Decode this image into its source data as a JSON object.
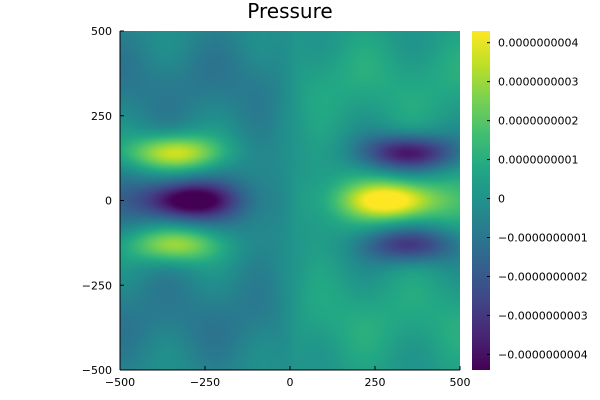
{
  "chart_data": {
    "type": "heatmap",
    "title": "Pressure",
    "xlabel": "",
    "ylabel": "",
    "xlim": [
      -500,
      500
    ],
    "ylim": [
      -500,
      500
    ],
    "x_ticks": [
      {
        "value": -500,
        "label": "−500"
      },
      {
        "value": -250,
        "label": "−250"
      },
      {
        "value": 0,
        "label": "0"
      },
      {
        "value": 250,
        "label": "250"
      },
      {
        "value": 500,
        "label": "500"
      }
    ],
    "y_ticks": [
      {
        "value": -500,
        "label": "−500"
      },
      {
        "value": -250,
        "label": "−250"
      },
      {
        "value": 0,
        "label": "0"
      },
      {
        "value": 250,
        "label": "250"
      },
      {
        "value": 500,
        "label": "500"
      }
    ],
    "colorbar": {
      "colormap": "viridis",
      "range": [
        -4.4e-10,
        4.3e-10
      ],
      "ticks": [
        {
          "value": 4e-10,
          "label": "0.0000000004"
        },
        {
          "value": 3e-10,
          "label": "0.0000000003"
        },
        {
          "value": 2e-10,
          "label": "0.0000000002"
        },
        {
          "value": 1e-10,
          "label": "0.0000000001"
        },
        {
          "value": 0,
          "label": "0"
        },
        {
          "value": -1e-10,
          "label": "−0.0000000001"
        },
        {
          "value": -2e-10,
          "label": "−0.0000000002"
        },
        {
          "value": -3e-10,
          "label": "−0.0000000003"
        },
        {
          "value": -4e-10,
          "label": "−0.0000000004"
        }
      ]
    },
    "features": [
      {
        "x": -340,
        "y": 140,
        "value": 4.2e-10
      },
      {
        "x": -300,
        "y": 0,
        "value": -4.4e-10
      },
      {
        "x": -340,
        "y": -130,
        "value": 3.5e-10
      },
      {
        "x": 350,
        "y": 140,
        "value": -4.4e-10
      },
      {
        "x": 300,
        "y": 0,
        "value": 4.3e-10
      },
      {
        "x": 350,
        "y": -130,
        "value": -3.5e-10
      }
    ],
    "grid": false,
    "legend": "none"
  }
}
